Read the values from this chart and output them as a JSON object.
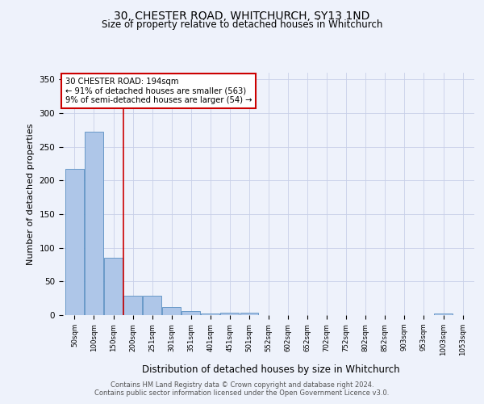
{
  "title1": "30, CHESTER ROAD, WHITCHURCH, SY13 1ND",
  "title2": "Size of property relative to detached houses in Whitchurch",
  "xlabel": "Distribution of detached houses by size in Whitchurch",
  "ylabel": "Number of detached properties",
  "categories": [
    "50sqm",
    "100sqm",
    "150sqm",
    "200sqm",
    "251sqm",
    "301sqm",
    "351sqm",
    "401sqm",
    "451sqm",
    "501sqm",
    "552sqm",
    "602sqm",
    "652sqm",
    "702sqm",
    "752sqm",
    "802sqm",
    "852sqm",
    "903sqm",
    "953sqm",
    "1003sqm",
    "1053sqm"
  ],
  "values": [
    217,
    272,
    85,
    29,
    29,
    12,
    6,
    3,
    4,
    4,
    0,
    0,
    0,
    0,
    0,
    0,
    0,
    0,
    0,
    3,
    0
  ],
  "bar_color": "#aec6e8",
  "bar_edge_color": "#5a8fc2",
  "property_line_x": 2.5,
  "annotation_title": "30 CHESTER ROAD: 194sqm",
  "annotation_line1": "← 91% of detached houses are smaller (563)",
  "annotation_line2": "9% of semi-detached houses are larger (54) →",
  "footer1": "Contains HM Land Registry data © Crown copyright and database right 2024.",
  "footer2": "Contains public sector information licensed under the Open Government Licence v3.0.",
  "bg_color": "#eef2fb",
  "plot_bg_color": "#eef2fb",
  "grid_color": "#c8d0e8",
  "annotation_box_color": "#cc0000",
  "vline_color": "#cc0000",
  "ylim": [
    0,
    360
  ],
  "yticks": [
    0,
    50,
    100,
    150,
    200,
    250,
    300,
    350
  ]
}
